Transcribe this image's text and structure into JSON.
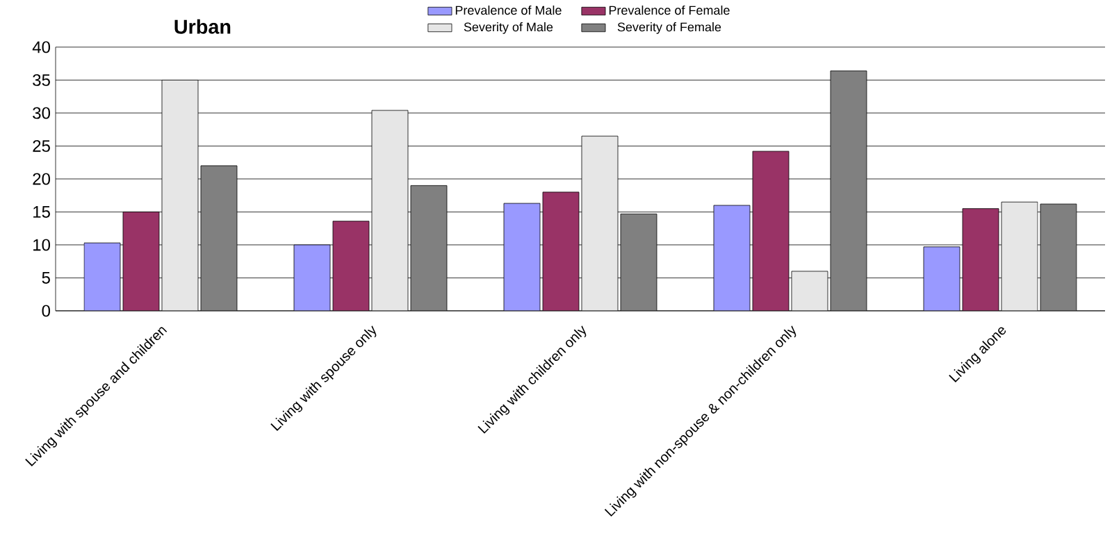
{
  "chart_data": {
    "type": "bar",
    "title": "Urban",
    "categories": [
      "Living with spouse and children",
      "Living with spouse only",
      "Living with children only",
      "Living with non-spouse & non-children  only",
      "Living alone"
    ],
    "series": [
      {
        "name": "Prevalence of Male",
        "color": "#9999ff",
        "values": [
          10.3,
          10,
          16.3,
          16,
          9.7
        ]
      },
      {
        "name": "Prevalence of Female",
        "color": "#993366",
        "values": [
          15,
          13.6,
          18,
          24.2,
          15.5
        ]
      },
      {
        "name": "Severity of Male",
        "color": "#e6e6e6",
        "values": [
          35,
          30.4,
          26.5,
          6,
          16.5
        ]
      },
      {
        "name": "Severity of Female",
        "color": "#808080",
        "values": [
          22,
          19,
          14.7,
          36.4,
          16.2
        ]
      }
    ],
    "ylim": [
      0,
      40
    ],
    "yticks": [
      0,
      5,
      10,
      15,
      20,
      25,
      30,
      35,
      40
    ],
    "grid": "y",
    "legend": "top"
  }
}
